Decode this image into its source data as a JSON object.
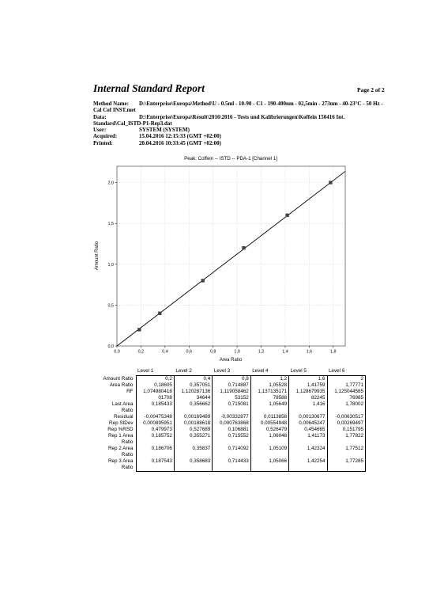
{
  "report": {
    "title": "Internal Standard Report",
    "page_number": "Page 2 of 2"
  },
  "meta": {
    "method_label": "Method Name:",
    "method_value": "D:\\Enterprise\\Europa\\Method\\U - 0.5ml - 10-90 - C1 - 190-400nm - 02,5min - 273nm - 40-23°C - 50 Hz - Cal Cof INST.met",
    "data_label": "Data:",
    "data_value": "D:\\Enterprise\\Europa\\Result\\2016\\2016 - Tests und Kalibrierungen\\Koffein 150416 Int. Standard\\Cal_ISTD-P1-Rep3.dat",
    "user_label": "User:",
    "user_value": "SYSTEM (SYSTEM)",
    "acquired_label": "Acquired:",
    "acquired_value": "15.04.2016 12:15:33 (GMT +02:00)",
    "printed_label": "Printed:",
    "printed_value": "20.04.2016 10:33:45 (GMT +02:00)"
  },
  "chart_data": {
    "type": "scatter",
    "title": "Peak: Coffein -- ISTD -- PDA-1 [Channel 1]",
    "xlabel": "Area Ratio",
    "ylabel": "Amount Ratio",
    "xlim": [
      0.0,
      1.9
    ],
    "ylim": [
      0.0,
      2.2
    ],
    "x_ticks": [
      "0,0",
      "0,2",
      "0,4",
      "0,6",
      "0,8",
      "1,0",
      "1,2",
      "1,4",
      "1,6",
      "1,8"
    ],
    "x_tick_values": [
      0.0,
      0.2,
      0.4,
      0.6,
      0.8,
      1.0,
      1.2,
      1.4,
      1.6,
      1.8
    ],
    "y_ticks": [
      "0,0",
      "0,5",
      "1,0",
      "1,5",
      "2,0"
    ],
    "y_tick_values": [
      0.0,
      0.5,
      1.0,
      1.5,
      2.0
    ],
    "grid": true,
    "points": {
      "x": [
        0.18605,
        0.357051,
        0.714887,
        1.05528,
        1.41759,
        1.77771
      ],
      "y": [
        0.2,
        0.4,
        0.8,
        1.2,
        1.6,
        2.0
      ]
    },
    "fit_line": {
      "x": [
        0.0,
        1.9
      ],
      "y": [
        0.0,
        2.1375
      ]
    },
    "colors": {
      "axis": "#000000",
      "grid": "#d6d6d6",
      "marker": "#444444",
      "line": "#000000"
    }
  },
  "table": {
    "headers": [
      "",
      "Level 1",
      "Level 2",
      "Level 3",
      "Level 4",
      "Level 5",
      "Level 6"
    ],
    "rows": [
      {
        "label": [
          "Amount Ratio"
        ],
        "values": [
          [
            "0,2"
          ],
          [
            "0,4"
          ],
          [
            "0,8"
          ],
          [
            "1,2"
          ],
          [
            "1,6"
          ],
          [
            "2"
          ]
        ]
      },
      {
        "label": [
          "Area Ratio"
        ],
        "values": [
          [
            "0,18605"
          ],
          [
            "0,357051"
          ],
          [
            "0,714887"
          ],
          [
            "1,05528"
          ],
          [
            "1,41759"
          ],
          [
            "1,77771"
          ]
        ]
      },
      {
        "label": [
          "RF"
        ],
        "values": [
          [
            "1,074980418",
            "01708"
          ],
          [
            "1,120287136",
            "34644"
          ],
          [
            "1,119058462",
            "53152"
          ],
          [
            "1,137135171",
            "78588"
          ],
          [
            "1,128679935",
            "82245"
          ],
          [
            "1,125044585",
            "76985"
          ]
        ]
      },
      {
        "label": [
          "Last Area",
          "Ratio"
        ],
        "values": [
          [
            "0,185433"
          ],
          [
            "0,356662"
          ],
          [
            "0,715081"
          ],
          [
            "1,05649"
          ],
          [
            "1,416"
          ],
          [
            "1,78002"
          ]
        ]
      },
      {
        "label": [
          "Residual"
        ],
        "values": [
          [
            "-0,00475348"
          ],
          [
            "0,00169489"
          ],
          [
            "-0,00332877"
          ],
          [
            "0,0113858"
          ],
          [
            "0,00130677"
          ],
          [
            "-0,00630517"
          ]
        ]
      },
      {
        "label": [
          "Rep StDev"
        ],
        "values": [
          [
            "0,000895951"
          ],
          [
            "0,00188618"
          ],
          [
            "0,000763868"
          ],
          [
            "0,00554948"
          ],
          [
            "0,00645247"
          ],
          [
            "0,00269497"
          ]
        ]
      },
      {
        "label": [
          "Rep %RSD"
        ],
        "values": [
          [
            "0,479973"
          ],
          [
            "0,527689"
          ],
          [
            "0,106881"
          ],
          [
            "0,526479"
          ],
          [
            "0,454665"
          ],
          [
            "0,151795"
          ]
        ]
      },
      {
        "label": [
          "Rep 1 Area",
          "Ratio"
        ],
        "values": [
          [
            "0,185752"
          ],
          [
            "0,355271"
          ],
          [
            "0,715552"
          ],
          [
            "1,06048"
          ],
          [
            "1,41173"
          ],
          [
            "1,77822"
          ]
        ]
      },
      {
        "label": [
          "Rep 2 Area",
          "Ratio"
        ],
        "values": [
          [
            "0,186706"
          ],
          [
            "0,35837"
          ],
          [
            "0,714092"
          ],
          [
            "1,05109"
          ],
          [
            "1,42324"
          ],
          [
            "1,77512"
          ]
        ]
      },
      {
        "label": [
          "Rep 3 Area",
          "Ratio"
        ],
        "values": [
          [
            "0,187543"
          ],
          [
            "0,358683"
          ],
          [
            "0,714433"
          ],
          [
            "1,05066"
          ],
          [
            "1,42254"
          ],
          [
            "1,77285"
          ]
        ]
      }
    ]
  }
}
